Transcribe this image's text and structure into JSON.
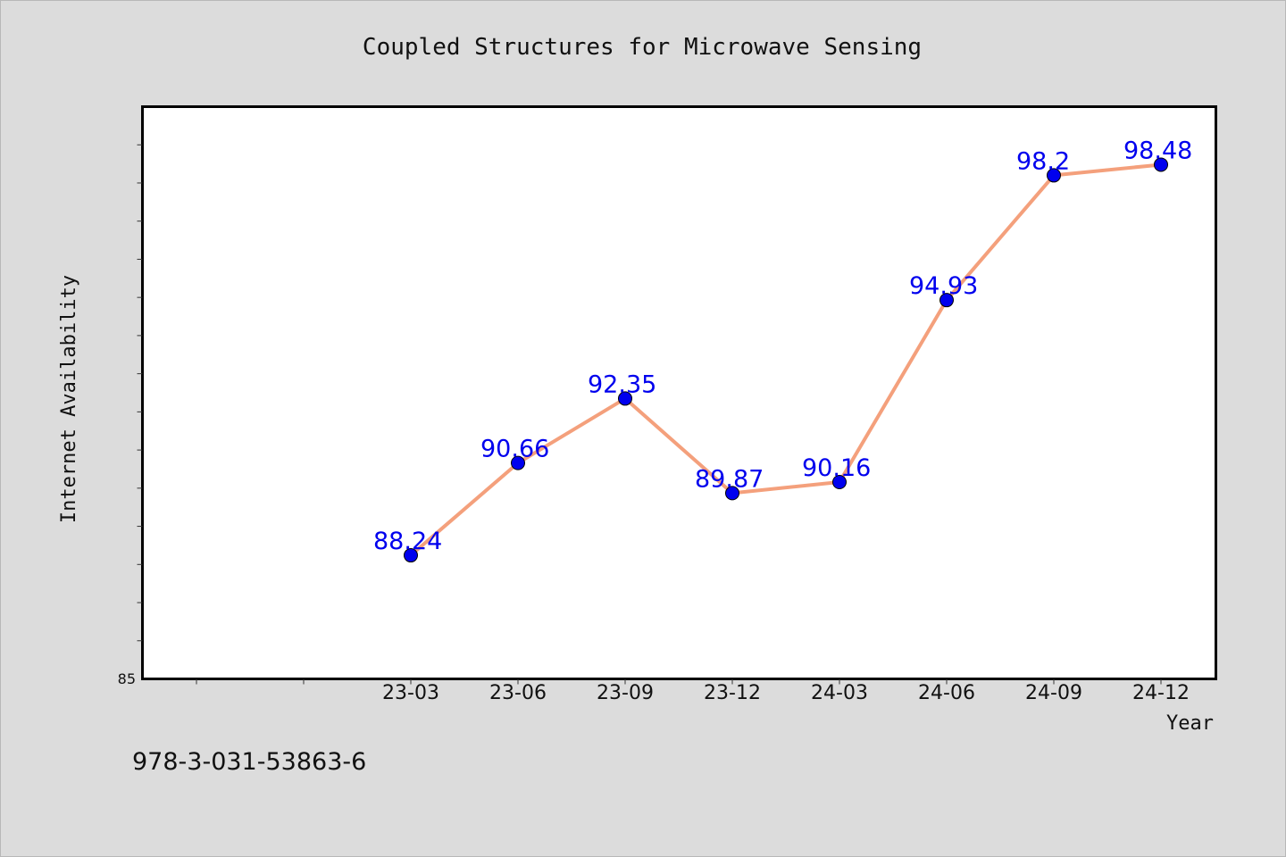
{
  "chart_data": {
    "type": "line",
    "title": "Coupled Structures for Microwave Sensing",
    "xlabel": "Year",
    "ylabel": "Internet Availability",
    "categories": [
      "23-03",
      "23-06",
      "23-09",
      "23-12",
      "24-03",
      "24-06",
      "24-09",
      "24-12"
    ],
    "series": [
      {
        "values": [
          88.24,
          90.66,
          92.35,
          89.87,
          90.16,
          94.93,
          98.2,
          98.48
        ],
        "line_color": "#f4a07c",
        "marker_color": "#0000ee",
        "label_color": "#0000ee"
      }
    ],
    "data_labels": [
      "88.24",
      "90.66",
      "92.35",
      "89.87",
      "90.16",
      "94.93",
      "98.2",
      "98.48"
    ],
    "y_tick_labels": [
      "85"
    ],
    "ylim": [
      85,
      100
    ],
    "y_minor_step": 1,
    "grid": false,
    "legend": "none"
  },
  "footer": {
    "isbn": "978-3-031-53863-6"
  },
  "colors": {
    "background": "#dcdcdc",
    "plot_background": "#ffffff",
    "axis": "#000000"
  }
}
